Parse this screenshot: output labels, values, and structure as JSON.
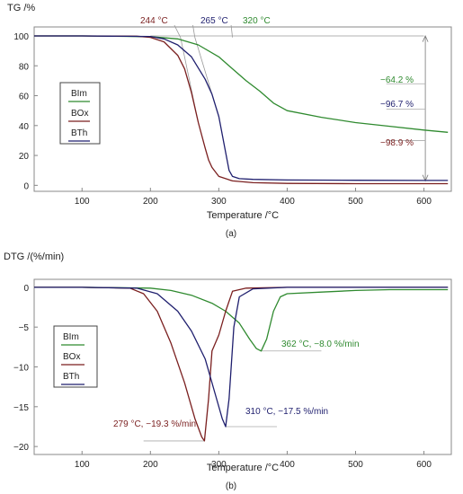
{
  "chart_data": [
    {
      "type": "line",
      "title": "",
      "caption": "(a)",
      "ylabel": "TG /%",
      "xlabel": "Temperature /°C",
      "xlim": [
        30,
        640
      ],
      "ylim": [
        -4,
        106
      ],
      "xticks": [
        100,
        200,
        300,
        400,
        500,
        600
      ],
      "yticks": [
        0,
        20,
        40,
        60,
        80,
        100
      ],
      "legend": {
        "placement": "left",
        "entries": [
          "BIm",
          "BOx",
          "BTh"
        ]
      },
      "series": [
        {
          "name": "BIm",
          "color": "#2f8a2f",
          "x": [
            30,
            100,
            200,
            240,
            270,
            300,
            320,
            340,
            360,
            380,
            400,
            450,
            500,
            550,
            600,
            635
          ],
          "y": [
            100,
            100,
            99.5,
            98,
            94,
            86,
            78,
            70,
            63,
            55,
            50,
            45.5,
            42,
            39.5,
            37,
            35.5
          ]
        },
        {
          "name": "BOx",
          "color": "#7a1f1f",
          "x": [
            30,
            100,
            180,
            200,
            220,
            240,
            250,
            260,
            270,
            280,
            285,
            290,
            300,
            320,
            350,
            400,
            500,
            600,
            635
          ],
          "y": [
            100,
            100,
            99.8,
            99,
            96,
            87,
            78,
            62,
            42,
            25,
            17,
            12,
            6,
            3,
            1.8,
            1.3,
            1.1,
            1.1,
            1.1
          ]
        },
        {
          "name": "BTh",
          "color": "#1f1f6e",
          "x": [
            30,
            100,
            200,
            220,
            240,
            260,
            280,
            290,
            300,
            310,
            315,
            320,
            330,
            350,
            400,
            500,
            600,
            635
          ],
          "y": [
            100,
            100,
            99.6,
            98,
            94,
            86,
            71,
            61,
            46,
            22,
            10,
            6,
            4.5,
            4,
            3.6,
            3.4,
            3.3,
            3.3
          ]
        }
      ],
      "annotations": {
        "onset": [
          {
            "label": "244 °C",
            "x": 244,
            "color": "#7a1f1f"
          },
          {
            "label": "265 °C",
            "x": 265,
            "color": "#1f1f6e"
          },
          {
            "label": "320 °C",
            "x": 320,
            "color": "#2f8a2f"
          }
        ],
        "mass_loss": [
          {
            "label": "−64.2 %",
            "color": "#2f8a2f",
            "y": 68
          },
          {
            "label": "−96.7 %",
            "color": "#1f1f6e",
            "y": 51
          },
          {
            "label": "−98.9 %",
            "color": "#7a1f1f",
            "y": 30
          }
        ]
      }
    },
    {
      "type": "line",
      "title": "",
      "caption": "(b)",
      "ylabel": "DTG /(%/min)",
      "xlabel": "Temperature /°C",
      "xlim": [
        30,
        640
      ],
      "ylim": [
        -21,
        1
      ],
      "xticks": [
        100,
        200,
        300,
        400,
        500,
        600
      ],
      "yticks": [
        0,
        -5,
        -10,
        -15,
        -20
      ],
      "legend": {
        "placement": "left",
        "entries": [
          "BIm",
          "BOx",
          "BTh"
        ]
      },
      "series": [
        {
          "name": "BIm",
          "color": "#2f8a2f",
          "x": [
            30,
            100,
            200,
            230,
            260,
            290,
            310,
            330,
            345,
            355,
            362,
            370,
            380,
            390,
            400,
            450,
            500,
            550,
            600,
            635
          ],
          "y": [
            0,
            0,
            -0.1,
            -0.4,
            -1,
            -2,
            -3,
            -4.5,
            -6.5,
            -7.7,
            -8,
            -6.5,
            -3,
            -1.2,
            -0.8,
            -0.6,
            -0.4,
            -0.3,
            -0.3,
            -0.3
          ]
        },
        {
          "name": "BOx",
          "color": "#7a1f1f",
          "x": [
            30,
            100,
            170,
            190,
            210,
            230,
            250,
            265,
            275,
            279,
            285,
            290,
            300,
            310,
            320,
            340,
            400,
            500,
            600,
            635
          ],
          "y": [
            0,
            0,
            -0.1,
            -0.8,
            -3,
            -7,
            -12,
            -16.5,
            -18.8,
            -19.3,
            -14,
            -8,
            -6,
            -3,
            -0.5,
            -0.1,
            0,
            0,
            0,
            0
          ]
        },
        {
          "name": "BTh",
          "color": "#1f1f6e",
          "x": [
            30,
            100,
            180,
            210,
            240,
            260,
            280,
            295,
            305,
            310,
            315,
            322,
            330,
            350,
            400,
            500,
            600,
            635
          ],
          "y": [
            0,
            0,
            -0.1,
            -0.8,
            -3,
            -5.5,
            -9,
            -13.5,
            -16.5,
            -17.5,
            -14,
            -5,
            -1.2,
            -0.2,
            0,
            0,
            0,
            0
          ]
        }
      ],
      "annotations": {
        "peaks": [
          {
            "label": "362 °C, −8.0 %/min",
            "x": 362,
            "y": -8.0,
            "color": "#2f8a2f"
          },
          {
            "label": "310 °C, −17.5 %/min",
            "x": 310,
            "y": -17.5,
            "color": "#1f1f6e"
          },
          {
            "label": "279 °C, −19.3 %/min",
            "x": 279,
            "y": -19.3,
            "color": "#7a1f1f"
          }
        ]
      }
    }
  ]
}
